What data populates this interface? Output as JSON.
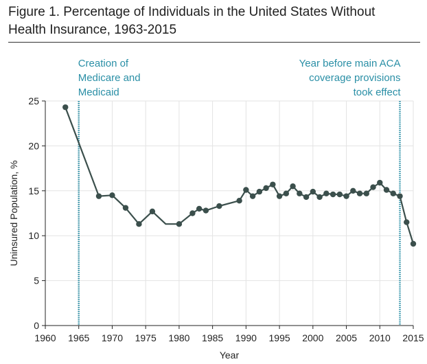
{
  "figure": {
    "title_line1": "Figure 1. Percentage of Individuals in the United States Without",
    "title_line2": "Health Insurance, 1963-2015"
  },
  "colors": {
    "series": "#3b4f4c",
    "annotation": "#2a8fa6",
    "grid": "#e3e3e3"
  },
  "chart_data": {
    "type": "line",
    "title": "Percentage of Individuals in the United States Without Health Insurance, 1963-2015",
    "xlabel": "Year",
    "ylabel": "Uninsured Population, %",
    "xlim": [
      1960,
      2015
    ],
    "ylim": [
      0,
      25
    ],
    "xticks": [
      1960,
      1965,
      1970,
      1975,
      1980,
      1985,
      1990,
      1995,
      2000,
      2005,
      2010,
      2015
    ],
    "yticks": [
      0,
      5,
      10,
      15,
      20,
      25
    ],
    "grid": true,
    "series": [
      {
        "name": "Uninsured Population, %",
        "points": [
          {
            "x": 1963,
            "y": 24.3,
            "marker": true
          },
          {
            "x": 1968,
            "y": 14.4,
            "marker": true
          },
          {
            "x": 1970,
            "y": 14.5,
            "marker": true
          },
          {
            "x": 1972,
            "y": 13.1,
            "marker": true
          },
          {
            "x": 1974,
            "y": 11.3,
            "marker": true
          },
          {
            "x": 1976,
            "y": 12.7,
            "marker": true
          },
          {
            "x": 1978,
            "y": 11.3,
            "marker": false
          },
          {
            "x": 1980,
            "y": 11.3,
            "marker": true
          },
          {
            "x": 1982,
            "y": 12.5,
            "marker": true
          },
          {
            "x": 1983,
            "y": 13.0,
            "marker": true
          },
          {
            "x": 1984,
            "y": 12.8,
            "marker": true
          },
          {
            "x": 1986,
            "y": 13.3,
            "marker": true
          },
          {
            "x": 1989,
            "y": 13.9,
            "marker": true
          },
          {
            "x": 1990,
            "y": 15.1,
            "marker": true
          },
          {
            "x": 1991,
            "y": 14.4,
            "marker": true
          },
          {
            "x": 1992,
            "y": 14.9,
            "marker": true
          },
          {
            "x": 1993,
            "y": 15.3,
            "marker": true
          },
          {
            "x": 1994,
            "y": 15.7,
            "marker": true
          },
          {
            "x": 1995,
            "y": 14.4,
            "marker": true
          },
          {
            "x": 1996,
            "y": 14.7,
            "marker": true
          },
          {
            "x": 1997,
            "y": 15.5,
            "marker": true
          },
          {
            "x": 1998,
            "y": 14.7,
            "marker": true
          },
          {
            "x": 1999,
            "y": 14.3,
            "marker": true
          },
          {
            "x": 2000,
            "y": 14.9,
            "marker": true
          },
          {
            "x": 2001,
            "y": 14.3,
            "marker": true
          },
          {
            "x": 2002,
            "y": 14.7,
            "marker": true
          },
          {
            "x": 2003,
            "y": 14.6,
            "marker": true
          },
          {
            "x": 2004,
            "y": 14.6,
            "marker": true
          },
          {
            "x": 2005,
            "y": 14.4,
            "marker": true
          },
          {
            "x": 2006,
            "y": 15.0,
            "marker": true
          },
          {
            "x": 2007,
            "y": 14.7,
            "marker": true
          },
          {
            "x": 2008,
            "y": 14.7,
            "marker": true
          },
          {
            "x": 2009,
            "y": 15.4,
            "marker": true
          },
          {
            "x": 2010,
            "y": 15.9,
            "marker": true
          },
          {
            "x": 2011,
            "y": 15.1,
            "marker": true
          },
          {
            "x": 2012,
            "y": 14.7,
            "marker": true
          },
          {
            "x": 2013,
            "y": 14.4,
            "marker": true
          },
          {
            "x": 2014,
            "y": 11.5,
            "marker": true
          },
          {
            "x": 2015,
            "y": 9.1,
            "marker": true
          }
        ]
      }
    ],
    "annotations": [
      {
        "x": 1965,
        "lines": [
          "Creation of",
          "Medicare and",
          "Medicaid"
        ],
        "align": "left"
      },
      {
        "x": 2013,
        "lines": [
          "Year before main ACA",
          "coverage provisions",
          "took effect"
        ],
        "align": "right"
      }
    ]
  }
}
